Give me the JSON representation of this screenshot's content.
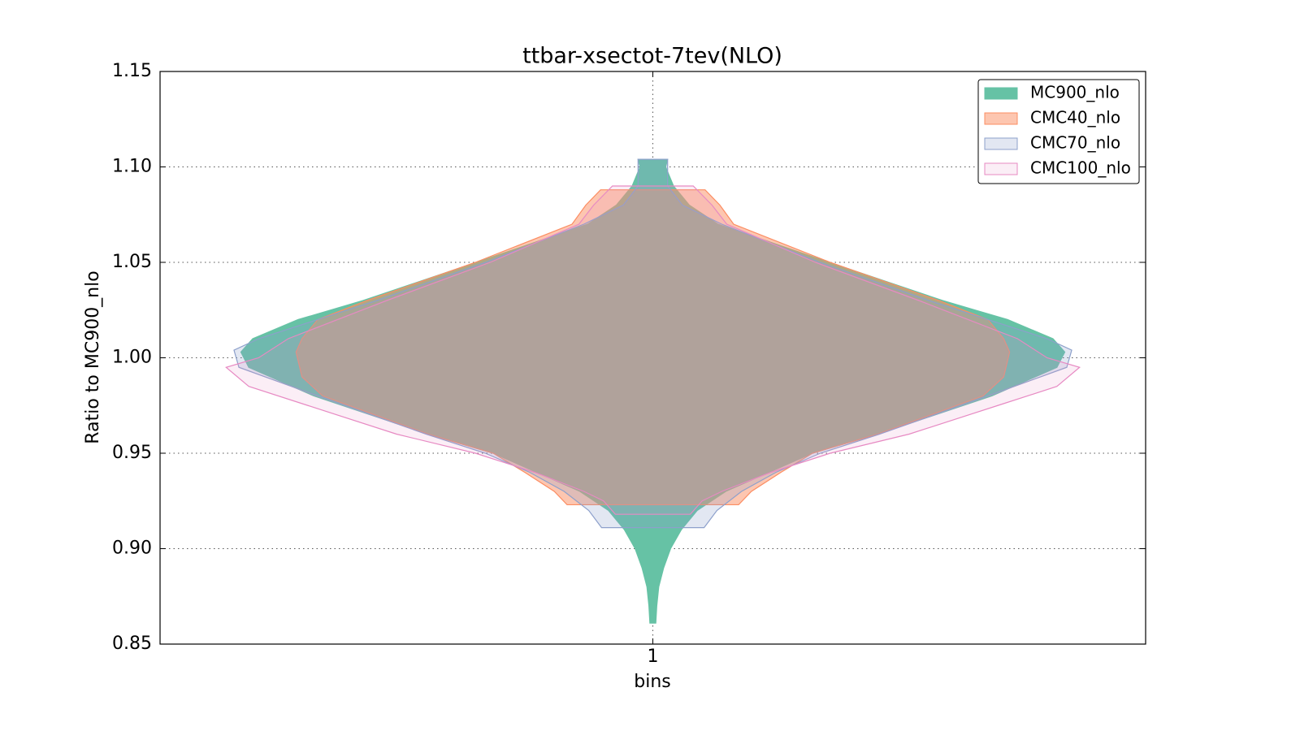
{
  "chart_data": {
    "type": "violin",
    "title": "ttbar-xsectot-7tev(NLO)",
    "x_label": "bins",
    "y_label": "Ratio to MC900_nlo",
    "categories": [
      "1"
    ],
    "xlim": [
      0.5,
      1.5
    ],
    "xticks": [
      1
    ],
    "ylim": [
      0.85,
      1.15
    ],
    "yticks": [
      0.85,
      {
        "value": 0.9,
        "label": "0.90"
      },
      0.95,
      {
        "value": 1.0,
        "label": "1.00"
      },
      1.05,
      {
        "value": 1.1,
        "label": "1.10"
      },
      1.15
    ],
    "grid": true,
    "legend": "upper right",
    "series": [
      {
        "name": "MC900_nlo",
        "color": "#66c2a5",
        "alpha": 1,
        "y": [
          1.104,
          1.104,
          1.1,
          1.09,
          1.08,
          1.07,
          1.05,
          1.03,
          1.02,
          1.01,
          1.003,
          0.995,
          0.98,
          0.96,
          0.95,
          0.93,
          0.92,
          0.91,
          0.9,
          0.89,
          0.88,
          0.87,
          0.861,
          0.861
        ],
        "half_width": [
          0,
          0.015,
          0.013,
          0.021,
          0.037,
          0.066,
          0.179,
          0.294,
          0.36,
          0.406,
          0.418,
          0.41,
          0.344,
          0.228,
          0.162,
          0.074,
          0.045,
          0.029,
          0.018,
          0.011,
          0.006,
          0.004,
          0.003,
          0
        ]
      },
      {
        "name": "CMC40_nlo",
        "color": "#fc8d62",
        "alpha": 0.5,
        "y": [
          1.088,
          1.088,
          1.08,
          1.07,
          1.05,
          1.03,
          1.02,
          1.01,
          1.003,
          0.99,
          0.98,
          0.96,
          0.95,
          0.94,
          0.93,
          0.923,
          0.923
        ],
        "half_width": [
          0,
          0.053,
          0.068,
          0.082,
          0.18,
          0.29,
          0.34,
          0.356,
          0.362,
          0.356,
          0.335,
          0.228,
          0.162,
          0.13,
          0.1,
          0.087,
          0
        ]
      },
      {
        "name": "CMC70_nlo",
        "color": "#8da0cb",
        "alpha": 0.25,
        "y": [
          1.104,
          1.104,
          1.09,
          1.08,
          1.07,
          1.05,
          1.03,
          1.01,
          1.004,
          0.995,
          0.98,
          0.96,
          0.95,
          0.94,
          0.93,
          0.92,
          0.911,
          0.911
        ],
        "half_width": [
          0,
          0.015,
          0.015,
          0.03,
          0.07,
          0.17,
          0.28,
          0.4,
          0.425,
          0.42,
          0.34,
          0.23,
          0.17,
          0.125,
          0.09,
          0.065,
          0.052,
          0
        ]
      },
      {
        "name": "CMC100_nlo",
        "color": "#e78ac3",
        "alpha": 0.15,
        "y": [
          1.09,
          1.09,
          1.08,
          1.07,
          1.05,
          1.03,
          1.01,
          1.0,
          0.995,
          0.985,
          0.975,
          0.96,
          0.95,
          0.94,
          0.93,
          0.925,
          0.918,
          0.918
        ],
        "half_width": [
          0,
          0.041,
          0.06,
          0.075,
          0.165,
          0.27,
          0.37,
          0.4,
          0.433,
          0.41,
          0.35,
          0.26,
          0.18,
          0.12,
          0.07,
          0.05,
          0.038,
          0
        ]
      }
    ]
  }
}
